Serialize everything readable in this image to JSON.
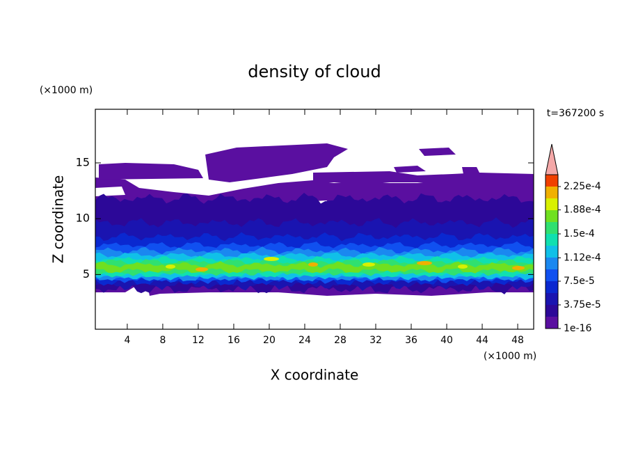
{
  "chart_data": {
    "type": "contour",
    "title": "density of cloud",
    "x_label": "X coordinate",
    "y_label": "Z coordinate",
    "x_unit": "(×1000 m)",
    "y_unit": "(×1000 m)",
    "time_label": "t=367200 s",
    "xlim": [
      0.4,
      49.8
    ],
    "ylim": [
      0.1,
      19.8
    ],
    "xticks": [
      4,
      8,
      12,
      16,
      20,
      24,
      28,
      32,
      36,
      40,
      44,
      48
    ],
    "yticks": [
      5,
      10,
      15
    ],
    "colorbar_ticks": [
      1e-16,
      {
        "value": 3.75e-05,
        "label": "3.75e-5"
      },
      {
        "value": 7.5e-05,
        "label": "7.5e-5"
      },
      {
        "value": 0.000112,
        "label": "1.12e-4"
      },
      {
        "value": 0.00015,
        "label": "1.5e-4"
      },
      {
        "value": 0.000188,
        "label": "1.88e-4"
      },
      {
        "value": 0.000225,
        "label": "2.25e-4"
      }
    ],
    "colors": [
      "#5a0fa0",
      "#2c0898",
      "#1a14b0",
      "#0a28d0",
      "#1050f0",
      "#1a88f0",
      "#10c0e8",
      "#10e0b0",
      "#30e070",
      "#70e020",
      "#d8f000",
      "#f0b000",
      "#f04000"
    ],
    "over_color": "#f4a8a8"
  }
}
